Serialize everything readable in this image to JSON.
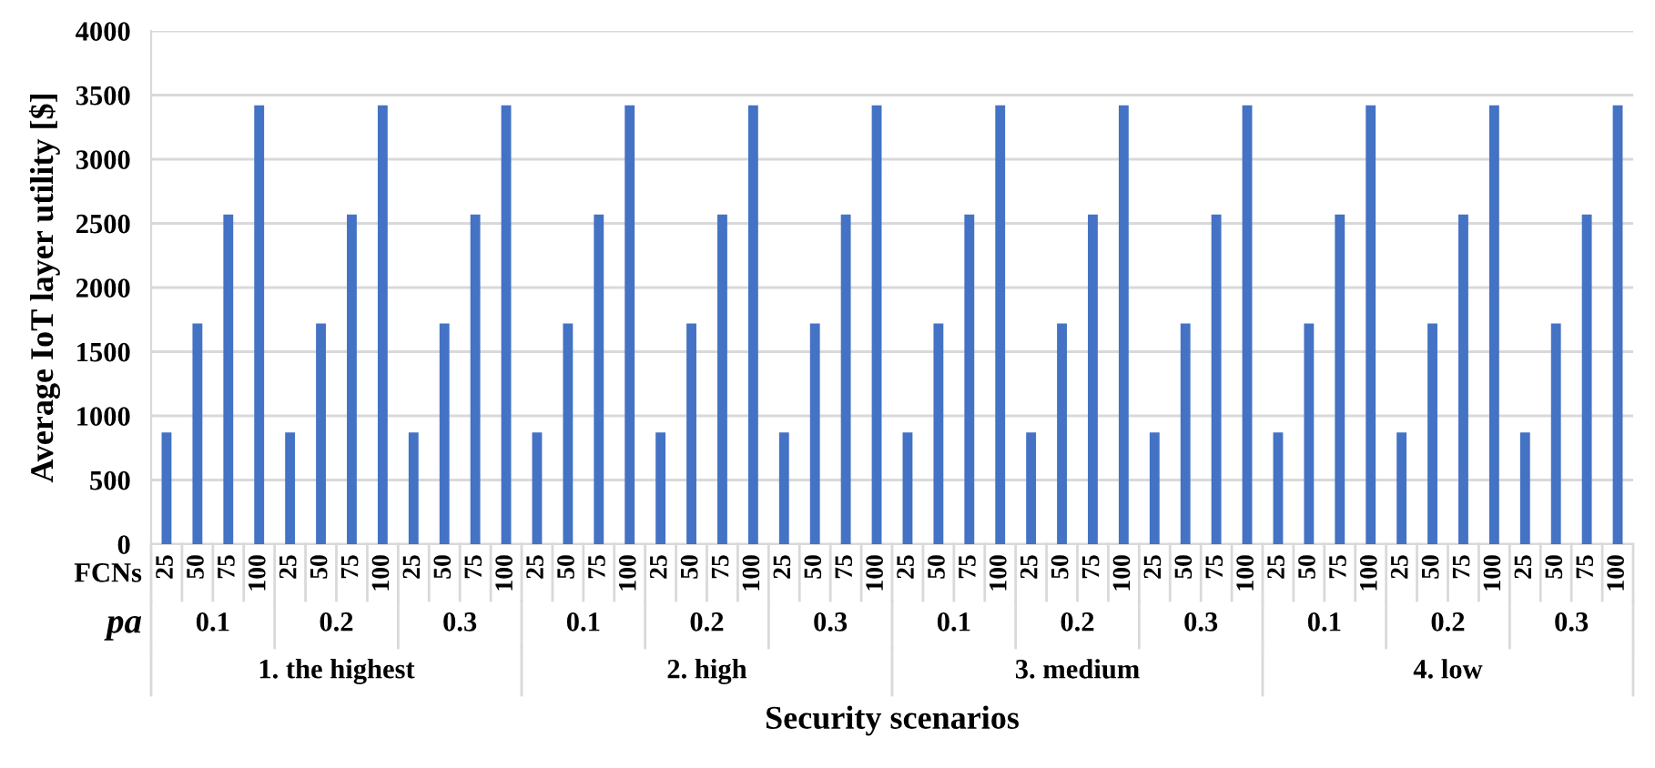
{
  "chart_data": {
    "type": "bar",
    "xlabel": "Security scenarios",
    "ylabel": "Average IoT layer utility [$]",
    "categories": [
      "25",
      "50",
      "75",
      "100",
      "25",
      "50",
      "75",
      "100",
      "25",
      "50",
      "75",
      "100",
      "25",
      "50",
      "75",
      "100",
      "25",
      "50",
      "75",
      "100",
      "25",
      "50",
      "75",
      "100",
      "25",
      "50",
      "75",
      "100",
      "25",
      "50",
      "75",
      "100",
      "25",
      "50",
      "75",
      "100",
      "25",
      "50",
      "75",
      "100",
      "25",
      "50",
      "75",
      "100",
      "25",
      "50",
      "75",
      "100"
    ],
    "values": [
      870,
      1720,
      2570,
      3420,
      870,
      1720,
      2570,
      3420,
      870,
      1720,
      2570,
      3420,
      870,
      1720,
      2570,
      3420,
      870,
      1720,
      2570,
      3420,
      870,
      1720,
      2570,
      3420,
      870,
      1720,
      2570,
      3420,
      870,
      1720,
      2570,
      3420,
      870,
      1720,
      2570,
      3420,
      870,
      1720,
      2570,
      3420,
      870,
      1720,
      2570,
      3420,
      870,
      1720,
      2570,
      3420
    ],
    "color": "#4472c4",
    "ylim": [
      0,
      4000
    ],
    "yticks": [
      0,
      500,
      1000,
      1500,
      2000,
      2500,
      3000,
      3500,
      4000
    ],
    "grid": "y",
    "legend": false,
    "annotations": [
      "FCNs",
      "pa",
      "0.1",
      "0.2",
      "0.3",
      "0.1",
      "0.2",
      "0.3",
      "0.1",
      "0.2",
      "0.3",
      "0.1",
      "0.2",
      "0.3",
      "1. the highest",
      "2. high",
      "3. medium",
      "4. low"
    ]
  }
}
